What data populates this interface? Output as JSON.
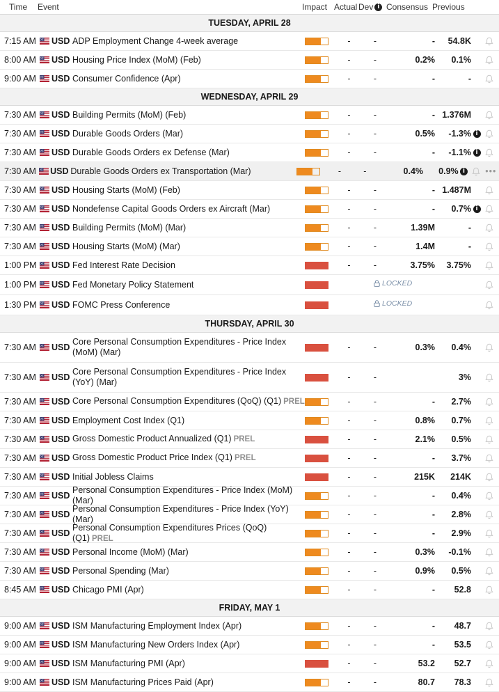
{
  "header": {
    "time": "Time",
    "event": "Event",
    "impact": "Impact",
    "actual": "Actual",
    "dev": "Dev",
    "consensus": "Consensus",
    "previous": "Previous"
  },
  "colors": {
    "impact_medium": "#ee8a1f",
    "impact_high": "#d9503f",
    "section_bg": "#f2f2f2"
  },
  "sections": [
    {
      "label": "TUESDAY, APRIL 28",
      "rows": [
        {
          "time": "7:15 AM",
          "cur": "USD",
          "event": "ADP Employment Change 4-week average",
          "impact": "medium",
          "actual": "-",
          "dev": "-",
          "cons": "-",
          "prev": "54.8K"
        },
        {
          "time": "8:00 AM",
          "cur": "USD",
          "event": "Housing Price Index (MoM) (Feb)",
          "impact": "medium",
          "actual": "-",
          "dev": "-",
          "cons": "0.2%",
          "prev": "0.1%"
        },
        {
          "time": "9:00 AM",
          "cur": "USD",
          "event": "Consumer Confidence (Apr)",
          "impact": "medium",
          "actual": "-",
          "dev": "-",
          "cons": "-",
          "prev": "-"
        }
      ]
    },
    {
      "label": "WEDNESDAY, APRIL 29",
      "rows": [
        {
          "time": "7:30 AM",
          "cur": "USD",
          "event": "Building Permits (MoM) (Feb)",
          "impact": "medium",
          "actual": "-",
          "dev": "-",
          "cons": "-",
          "prev": "1.376M"
        },
        {
          "time": "7:30 AM",
          "cur": "USD",
          "event": "Durable Goods Orders (Mar)",
          "impact": "medium",
          "actual": "-",
          "dev": "-",
          "cons": "0.5%",
          "prev": "-1.3%",
          "info": true
        },
        {
          "time": "7:30 AM",
          "cur": "USD",
          "event": "Durable Goods Orders ex Defense (Mar)",
          "impact": "medium",
          "actual": "-",
          "dev": "-",
          "cons": "-",
          "prev": "-1.1%",
          "info": true
        },
        {
          "time": "7:30 AM",
          "cur": "USD",
          "event": "Durable Goods Orders ex Transportation (Mar)",
          "impact": "medium",
          "actual": "-",
          "dev": "-",
          "cons": "0.4%",
          "prev": "0.9%",
          "info": true,
          "hover": true
        },
        {
          "time": "7:30 AM",
          "cur": "USD",
          "event": "Housing Starts (MoM) (Feb)",
          "impact": "medium",
          "actual": "-",
          "dev": "-",
          "cons": "-",
          "prev": "1.487M"
        },
        {
          "time": "7:30 AM",
          "cur": "USD",
          "event": "Nondefense Capital Goods Orders ex Aircraft (Mar)",
          "impact": "medium",
          "actual": "-",
          "dev": "-",
          "cons": "-",
          "prev": "0.7%",
          "info": true
        },
        {
          "time": "7:30 AM",
          "cur": "USD",
          "event": "Building Permits (MoM) (Mar)",
          "impact": "medium",
          "actual": "-",
          "dev": "-",
          "cons": "1.39M",
          "prev": "-"
        },
        {
          "time": "7:30 AM",
          "cur": "USD",
          "event": "Housing Starts (MoM) (Mar)",
          "impact": "medium",
          "actual": "-",
          "dev": "-",
          "cons": "1.4M",
          "prev": "-"
        },
        {
          "time": "1:00 PM",
          "cur": "USD",
          "event": "Fed Interest Rate Decision",
          "impact": "high",
          "actual": "-",
          "dev": "-",
          "cons": "3.75%",
          "prev": "3.75%"
        },
        {
          "time": "1:00 PM",
          "cur": "USD",
          "event": "Fed Monetary Policy Statement",
          "impact": "high",
          "locked": "LOCKED"
        },
        {
          "time": "1:30 PM",
          "cur": "USD",
          "event": "FOMC Press Conference",
          "impact": "high",
          "locked": "LOCKED"
        }
      ]
    },
    {
      "label": "THURSDAY, APRIL 30",
      "rows": [
        {
          "time": "7:30 AM",
          "cur": "USD",
          "event": "Core Personal Consumption Expenditures - Price Index (MoM) (Mar)",
          "impact": "high",
          "actual": "-",
          "dev": "-",
          "cons": "0.3%",
          "prev": "0.4%",
          "tall": true
        },
        {
          "time": "7:30 AM",
          "cur": "USD",
          "event": "Core Personal Consumption Expenditures - Price Index (YoY) (Mar)",
          "impact": "high",
          "actual": "-",
          "dev": "-",
          "cons": "",
          "prev": "3%",
          "tall": true
        },
        {
          "time": "7:30 AM",
          "cur": "USD",
          "event": "Core Personal Consumption Expenditures (QoQ) (Q1)",
          "prel": "PREL",
          "impact": "medium",
          "actual": "-",
          "dev": "-",
          "cons": "-",
          "prev": "2.7%"
        },
        {
          "time": "7:30 AM",
          "cur": "USD",
          "event": "Employment Cost Index (Q1)",
          "impact": "medium",
          "actual": "-",
          "dev": "-",
          "cons": "0.8%",
          "prev": "0.7%"
        },
        {
          "time": "7:30 AM",
          "cur": "USD",
          "event": "Gross Domestic Product Annualized (Q1)",
          "prel": "PREL",
          "impact": "high",
          "actual": "-",
          "dev": "-",
          "cons": "2.1%",
          "prev": "0.5%"
        },
        {
          "time": "7:30 AM",
          "cur": "USD",
          "event": "Gross Domestic Product Price Index (Q1)",
          "prel": "PREL",
          "impact": "high",
          "actual": "-",
          "dev": "-",
          "cons": "-",
          "prev": "3.7%"
        },
        {
          "time": "7:30 AM",
          "cur": "USD",
          "event": "Initial Jobless Claims",
          "impact": "high",
          "actual": "-",
          "dev": "-",
          "cons": "215K",
          "prev": "214K"
        },
        {
          "time": "7:30 AM",
          "cur": "USD",
          "event": "Personal Consumption Expenditures - Price Index (MoM) (Mar)",
          "impact": "medium",
          "actual": "-",
          "dev": "-",
          "cons": "-",
          "prev": "0.4%"
        },
        {
          "time": "7:30 AM",
          "cur": "USD",
          "event": "Personal Consumption Expenditures - Price Index (YoY) (Mar)",
          "impact": "medium",
          "actual": "-",
          "dev": "-",
          "cons": "-",
          "prev": "2.8%"
        },
        {
          "time": "7:30 AM",
          "cur": "USD",
          "event": "Personal Consumption Expenditures Prices (QoQ) (Q1)",
          "prel": "PREL",
          "impact": "medium",
          "actual": "-",
          "dev": "-",
          "cons": "-",
          "prev": "2.9%"
        },
        {
          "time": "7:30 AM",
          "cur": "USD",
          "event": "Personal Income (MoM) (Mar)",
          "impact": "medium",
          "actual": "-",
          "dev": "-",
          "cons": "0.3%",
          "prev": "-0.1%"
        },
        {
          "time": "7:30 AM",
          "cur": "USD",
          "event": "Personal Spending (Mar)",
          "impact": "medium",
          "actual": "-",
          "dev": "-",
          "cons": "0.9%",
          "prev": "0.5%"
        },
        {
          "time": "8:45 AM",
          "cur": "USD",
          "event": "Chicago PMI (Apr)",
          "impact": "medium",
          "actual": "-",
          "dev": "-",
          "cons": "-",
          "prev": "52.8"
        }
      ]
    },
    {
      "label": "FRIDAY, MAY 1",
      "rows": [
        {
          "time": "9:00 AM",
          "cur": "USD",
          "event": "ISM Manufacturing Employment Index (Apr)",
          "impact": "medium",
          "actual": "-",
          "dev": "-",
          "cons": "-",
          "prev": "48.7"
        },
        {
          "time": "9:00 AM",
          "cur": "USD",
          "event": "ISM Manufacturing New Orders Index (Apr)",
          "impact": "medium",
          "actual": "-",
          "dev": "-",
          "cons": "-",
          "prev": "53.5"
        },
        {
          "time": "9:00 AM",
          "cur": "USD",
          "event": "ISM Manufacturing PMI (Apr)",
          "impact": "high",
          "actual": "-",
          "dev": "-",
          "cons": "53.2",
          "prev": "52.7"
        },
        {
          "time": "9:00 AM",
          "cur": "USD",
          "event": "ISM Manufacturing Prices Paid (Apr)",
          "impact": "medium",
          "actual": "-",
          "dev": "-",
          "cons": "80.7",
          "prev": "78.3"
        }
      ]
    }
  ],
  "row_more": "•••"
}
